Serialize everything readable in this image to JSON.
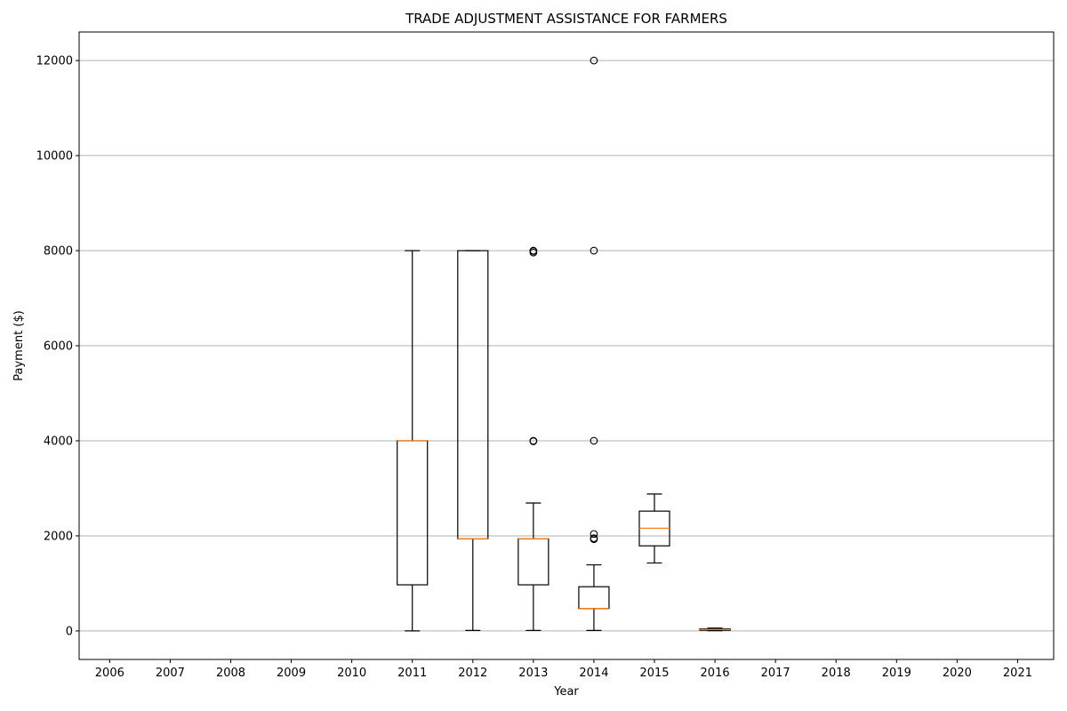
{
  "chart_data": {
    "type": "box",
    "title": "TRADE ADJUSTMENT ASSISTANCE FOR FARMERS",
    "xlabel": "Year",
    "ylabel": "Payment ($)",
    "categories": [
      "2006",
      "2007",
      "2008",
      "2009",
      "2010",
      "2011",
      "2012",
      "2013",
      "2014",
      "2015",
      "2016",
      "2017",
      "2018",
      "2019",
      "2020",
      "2021"
    ],
    "ylim": [
      -600,
      12600
    ],
    "yticks": [
      0,
      2000,
      4000,
      6000,
      8000,
      10000,
      12000
    ],
    "grid": "y",
    "boxes": [
      {
        "category": "2011",
        "whislo": 0,
        "q1": 970,
        "med": 4000,
        "q3": 4000,
        "whishi": 8000,
        "fliers": []
      },
      {
        "category": "2012",
        "whislo": 10,
        "q1": 1940,
        "med": 1940,
        "q3": 8000,
        "whishi": 8000,
        "fliers": []
      },
      {
        "category": "2013",
        "whislo": 10,
        "q1": 970,
        "med": 1940,
        "q3": 1940,
        "whishi": 2690,
        "fliers": [
          4000,
          3990,
          8000,
          7990,
          7960
        ]
      },
      {
        "category": "2014",
        "whislo": 10,
        "q1": 470,
        "med": 470,
        "q3": 930,
        "whishi": 1390,
        "fliers": [
          1930,
          1950,
          2040,
          4000,
          8000,
          12000
        ]
      },
      {
        "category": "2015",
        "whislo": 1430,
        "q1": 1790,
        "med": 2160,
        "q3": 2520,
        "whishi": 2880,
        "fliers": []
      },
      {
        "category": "2016",
        "whislo": 5,
        "q1": 15,
        "med": 30,
        "q3": 45,
        "whishi": 60,
        "fliers": []
      }
    ],
    "colors": {
      "box": "#000000",
      "median": "#ff7f0e",
      "grid": "#b0b0b0",
      "flier": "#000000"
    }
  }
}
